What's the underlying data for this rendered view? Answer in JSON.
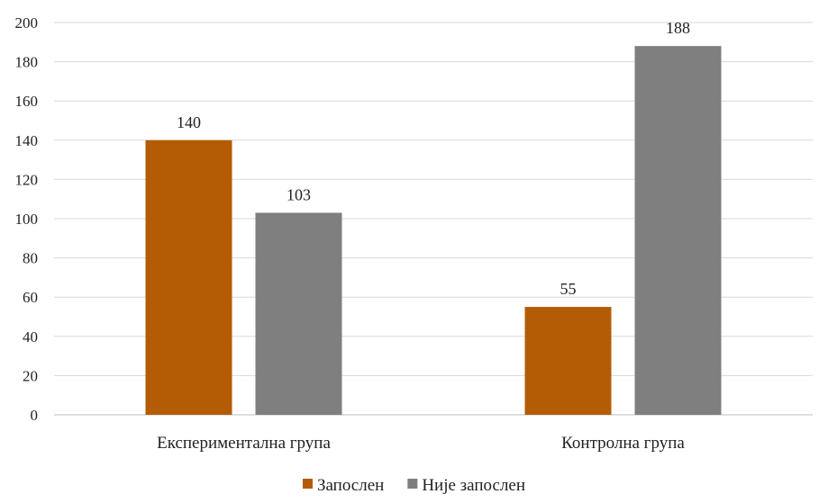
{
  "chart_data": {
    "type": "bar",
    "categories": [
      "Експериментална  група",
      "Контролна група"
    ],
    "series": [
      {
        "name": "Запослен",
        "values": [
          140,
          55
        ],
        "color": "#b35c05"
      },
      {
        "name": "Није запослен",
        "values": [
          103,
          188
        ],
        "color": "#7f7f7f"
      }
    ],
    "ylim": [
      0,
      200
    ],
    "yticks": [
      0,
      20,
      40,
      60,
      80,
      100,
      120,
      140,
      160,
      180,
      200
    ],
    "grid": true,
    "legend_position": "bottom",
    "show_data_labels": true,
    "title": "",
    "xlabel": "",
    "ylabel": ""
  },
  "colors": {
    "gridline": "#d9d9d9",
    "axis": "#bfbfbf",
    "text": "#222222"
  }
}
